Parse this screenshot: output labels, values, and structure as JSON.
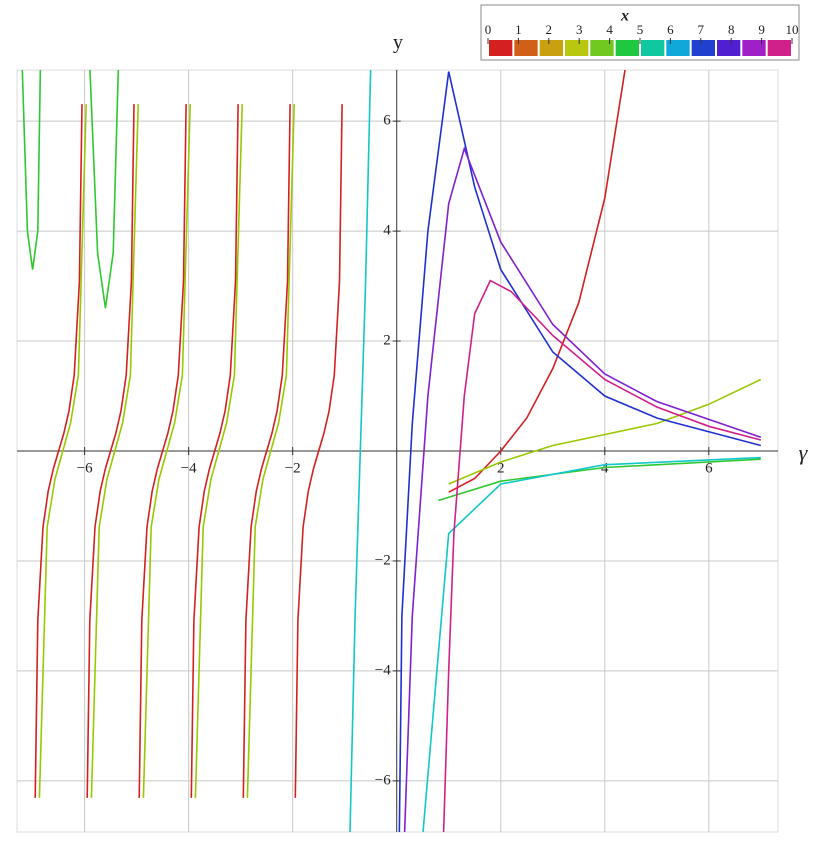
{
  "chart_data": {
    "type": "line",
    "xlabel": "γ",
    "ylabel": "y",
    "xlim": [
      -7.3,
      7.33
    ],
    "ylim": [
      -6.93,
      6.93
    ],
    "xticks": [
      {
        "value": -6,
        "label": "−6"
      },
      {
        "value": -4,
        "label": "−4"
      },
      {
        "value": -2,
        "label": "−2"
      },
      2,
      4,
      6
    ],
    "yticks": [
      {
        "value": -6,
        "label": "−6"
      },
      {
        "value": -4,
        "label": "−4"
      },
      {
        "value": -2,
        "label": "−2"
      },
      2,
      4,
      6
    ],
    "grid": true,
    "colorbar": {
      "title": "x",
      "ticks": [
        0,
        1,
        2,
        3,
        4,
        5,
        6,
        7,
        8,
        9,
        10
      ],
      "colors": [
        "#d42020",
        "#d06018",
        "#c8a010",
        "#b8c810",
        "#70c820",
        "#20c840",
        "#10c8a0",
        "#10a8d8",
        "#2040d0",
        "#5020d0",
        "#a020c8",
        "#d0208a"
      ]
    },
    "series": [
      {
        "color": "#d42020",
        "x": [
          -6.95,
          -6.9,
          -6.8,
          -6.7,
          -6.6,
          -6.5,
          -6.4,
          -6.3,
          -6.2,
          -6.1,
          -6.05,
          null,
          -5.95,
          -5.9,
          -5.8,
          -5.7,
          -5.6,
          -5.5,
          -5.4,
          -5.3,
          -5.2,
          -5.1,
          -5.05,
          null,
          -4.95,
          -4.9,
          -4.8,
          -4.7,
          -4.6,
          -4.5,
          -4.4,
          -4.3,
          -4.2,
          -4.1,
          -4.05,
          null,
          -3.95,
          -3.9,
          -3.8,
          -3.7,
          -3.6,
          -3.5,
          -3.4,
          -3.3,
          -3.2,
          -3.1,
          -3.05,
          null,
          -2.95,
          -2.9,
          -2.8,
          -2.7,
          -2.6,
          -2.5,
          -2.4,
          -2.3,
          -2.2,
          -2.1,
          -2.05,
          null,
          -1.95,
          -1.9,
          -1.8,
          -1.7,
          -1.6,
          -1.5,
          -1.4,
          -1.3,
          -1.2,
          -1.1,
          -1.05,
          null,
          1.0,
          1.5,
          2,
          2.5,
          3,
          3.5,
          4,
          4.4
        ],
        "values": [
          -6.31,
          -3.08,
          -1.38,
          -0.73,
          -0.32,
          0,
          0.32,
          0.73,
          1.38,
          3.08,
          6.31,
          null,
          -6.31,
          -3.08,
          -1.38,
          -0.73,
          -0.32,
          0,
          0.32,
          0.73,
          1.38,
          3.08,
          6.31,
          null,
          -6.31,
          -3.08,
          -1.38,
          -0.73,
          -0.32,
          0,
          0.32,
          0.73,
          1.38,
          3.08,
          6.31,
          null,
          -6.31,
          -3.08,
          -1.38,
          -0.73,
          -0.32,
          0,
          0.32,
          0.73,
          1.38,
          3.08,
          6.31,
          null,
          -6.31,
          -3.08,
          -1.38,
          -0.73,
          -0.32,
          0,
          0.32,
          0.73,
          1.38,
          3.08,
          6.31,
          null,
          -6.31,
          -3.08,
          -1.38,
          -0.73,
          -0.32,
          0,
          0.32,
          0.73,
          1.38,
          3.08,
          6.31,
          null,
          -0.75,
          -0.5,
          0,
          0.6,
          1.5,
          2.7,
          4.6,
          7
        ]
      },
      {
        "color": "#9ac800",
        "x": [
          -6.87,
          -6.72,
          -6.57,
          -6.42,
          -6.27,
          -6.12,
          -5.97,
          null,
          -5.87,
          -5.72,
          -5.57,
          -5.42,
          -5.27,
          -5.12,
          -4.97,
          null,
          -4.87,
          -4.72,
          -4.57,
          -4.42,
          -4.27,
          -4.12,
          -3.97,
          null,
          -3.87,
          -3.72,
          -3.57,
          -3.42,
          -3.27,
          -3.12,
          -2.97,
          null,
          -2.87,
          -2.72,
          -2.57,
          -2.42,
          -2.27,
          -2.12,
          -1.97,
          null,
          1,
          2,
          3,
          4,
          5,
          6,
          7
        ],
        "values": [
          -6.31,
          -1.38,
          -0.51,
          0,
          0.51,
          1.38,
          6.31,
          null,
          -6.31,
          -1.38,
          -0.51,
          0,
          0.51,
          1.38,
          6.31,
          null,
          -6.31,
          -1.38,
          -0.51,
          0,
          0.51,
          1.38,
          6.31,
          null,
          -6.31,
          -1.38,
          -0.51,
          0,
          0.51,
          1.38,
          6.31,
          null,
          -6.31,
          -1.38,
          -0.51,
          0,
          0.51,
          1.38,
          6.31,
          null,
          -0.6,
          -0.2,
          0.1,
          0.3,
          0.5,
          0.85,
          1.3
        ]
      },
      {
        "color": "#30c830",
        "x": [
          -7.2,
          -7.1,
          -7.0,
          -6.9,
          -6.85,
          null,
          -5.9,
          -5.75,
          -5.6,
          -5.45,
          -5.35,
          null,
          0.8,
          2,
          4,
          7
        ],
        "values": [
          7,
          4,
          3.3,
          4,
          7,
          null,
          7,
          3.6,
          2.6,
          3.6,
          7,
          null,
          -0.9,
          -0.55,
          -0.3,
          -0.15
        ]
      },
      {
        "color": "#10c8c8",
        "x": [
          -0.9,
          -0.8,
          -0.7,
          -0.6,
          -0.5,
          null,
          0.5,
          1,
          2,
          4,
          7
        ],
        "values": [
          -7,
          -3,
          0,
          3,
          7,
          null,
          -7,
          -1.5,
          -0.6,
          -0.25,
          -0.12
        ]
      },
      {
        "color": "#2030d0",
        "x": [
          0.05,
          0.1,
          0.3,
          0.6,
          1.0,
          1.5,
          2,
          3,
          4,
          5,
          7
        ],
        "values": [
          -7,
          -3,
          0.5,
          4,
          6.9,
          4.8,
          3.3,
          1.8,
          1.0,
          0.6,
          0.1
        ]
      },
      {
        "color": "#8020d0",
        "x": [
          0.15,
          0.3,
          0.6,
          1.0,
          1.3,
          2,
          3,
          4,
          5,
          7
        ],
        "values": [
          -7,
          -3,
          1,
          4.5,
          5.5,
          3.8,
          2.3,
          1.4,
          0.9,
          0.25
        ]
      },
      {
        "color": "#d0208a",
        "x": [
          0.9,
          1.0,
          1.1,
          1.3,
          1.5,
          1.8,
          2.2,
          3,
          4,
          5,
          6,
          7
        ],
        "values": [
          -7,
          -4,
          -1.5,
          1,
          2.5,
          3.1,
          2.9,
          2.1,
          1.3,
          0.8,
          0.45,
          0.2
        ]
      }
    ]
  }
}
